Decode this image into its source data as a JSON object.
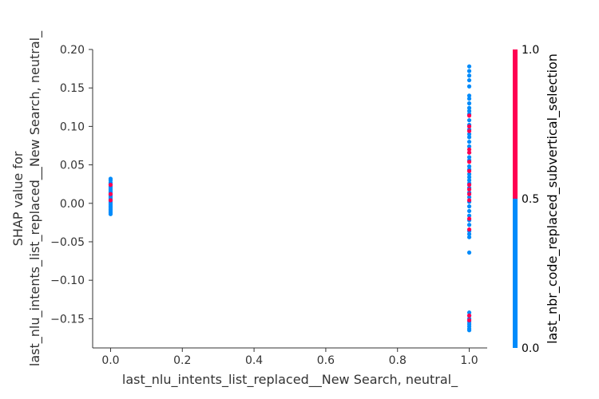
{
  "chart_data": {
    "type": "scatter",
    "title": "",
    "xlabel": "last_nlu_intents_list_replaced__New Search, neutral_",
    "ylabel_lines": [
      "SHAP value for",
      "last_nlu_intents_list_replaced__New Search, neutral_"
    ],
    "xlim": [
      -0.05,
      1.05
    ],
    "ylim": [
      -0.188,
      0.2
    ],
    "x_ticks": [
      "0.0",
      "0.2",
      "0.4",
      "0.6",
      "0.8",
      "1.0"
    ],
    "x_tick_values": [
      0.0,
      0.2,
      0.4,
      0.6,
      0.8,
      1.0
    ],
    "y_ticks": [
      "0.20",
      "0.15",
      "0.10",
      "0.05",
      "0.00",
      "−0.05",
      "−0.10",
      "−0.15"
    ],
    "y_tick_values": [
      0.2,
      0.15,
      0.1,
      0.05,
      0.0,
      -0.05,
      -0.1,
      -0.15
    ],
    "colors": {
      "low": "#008bfb",
      "high": "#ff0052"
    },
    "colorbar": {
      "label": "last_nbr_code_replaced_subvertical_selection",
      "ticks": [
        "1.0",
        "0.5",
        "0.0"
      ],
      "tick_values": [
        1.0,
        0.5,
        0.0
      ]
    },
    "series": [
      {
        "color_value": 0,
        "points": [
          [
            0,
            0.032
          ],
          [
            0,
            0.03
          ],
          [
            0,
            0.027
          ],
          [
            0,
            0.025
          ],
          [
            0,
            0.022
          ],
          [
            0,
            0.02
          ],
          [
            0,
            0.018
          ],
          [
            0,
            0.016
          ],
          [
            0,
            0.014
          ],
          [
            0,
            0.012
          ],
          [
            0,
            0.01
          ],
          [
            0,
            0.008
          ],
          [
            0,
            0.006
          ],
          [
            0,
            0.004
          ],
          [
            0,
            0.002
          ],
          [
            0,
            0.0
          ],
          [
            0,
            -0.002
          ],
          [
            0,
            -0.004
          ],
          [
            0,
            -0.006
          ],
          [
            0,
            -0.008
          ],
          [
            0,
            -0.01
          ],
          [
            0,
            -0.012
          ],
          [
            0,
            -0.014
          ],
          [
            1,
            0.178
          ],
          [
            1,
            0.172
          ],
          [
            1,
            0.166
          ],
          [
            1,
            0.16
          ],
          [
            1,
            0.152
          ],
          [
            1,
            0.14
          ],
          [
            1,
            0.136
          ],
          [
            1,
            0.13
          ],
          [
            1,
            0.124
          ],
          [
            1,
            0.12
          ],
          [
            1,
            0.116
          ],
          [
            1,
            0.108
          ],
          [
            1,
            0.102
          ],
          [
            1,
            0.096
          ],
          [
            1,
            0.09
          ],
          [
            1,
            0.086
          ],
          [
            1,
            0.08
          ],
          [
            1,
            0.074
          ],
          [
            1,
            0.066
          ],
          [
            1,
            0.06
          ],
          [
            1,
            0.056
          ],
          [
            1,
            0.048
          ],
          [
            1,
            0.044
          ],
          [
            1,
            0.038
          ],
          [
            1,
            0.034
          ],
          [
            1,
            0.03
          ],
          [
            1,
            0.026
          ],
          [
            1,
            0.02
          ],
          [
            1,
            0.014
          ],
          [
            1,
            0.008
          ],
          [
            1,
            0.002
          ],
          [
            1,
            -0.004
          ],
          [
            1,
            -0.01
          ],
          [
            1,
            -0.016
          ],
          [
            1,
            -0.022
          ],
          [
            1,
            -0.028
          ],
          [
            1,
            -0.036
          ],
          [
            1,
            -0.04
          ],
          [
            1,
            -0.044
          ],
          [
            1,
            -0.064
          ],
          [
            1,
            -0.142
          ],
          [
            1,
            -0.146
          ],
          [
            1,
            -0.15
          ],
          [
            1,
            -0.154
          ],
          [
            1,
            -0.157
          ],
          [
            1,
            -0.16
          ],
          [
            1,
            -0.163
          ],
          [
            1,
            -0.165
          ]
        ]
      },
      {
        "color_value": 1,
        "points": [
          [
            0,
            0.024
          ],
          [
            0,
            0.012
          ],
          [
            0,
            0.004
          ],
          [
            1,
            0.114
          ],
          [
            1,
            0.1
          ],
          [
            1,
            0.094
          ],
          [
            1,
            0.07
          ],
          [
            1,
            0.066
          ],
          [
            1,
            0.054
          ],
          [
            1,
            0.042
          ],
          [
            1,
            0.024
          ],
          [
            1,
            0.018
          ],
          [
            1,
            0.012
          ],
          [
            1,
            0.004
          ],
          [
            1,
            -0.02
          ],
          [
            1,
            -0.034
          ],
          [
            1,
            -0.146
          ],
          [
            1,
            -0.152
          ]
        ]
      }
    ]
  }
}
